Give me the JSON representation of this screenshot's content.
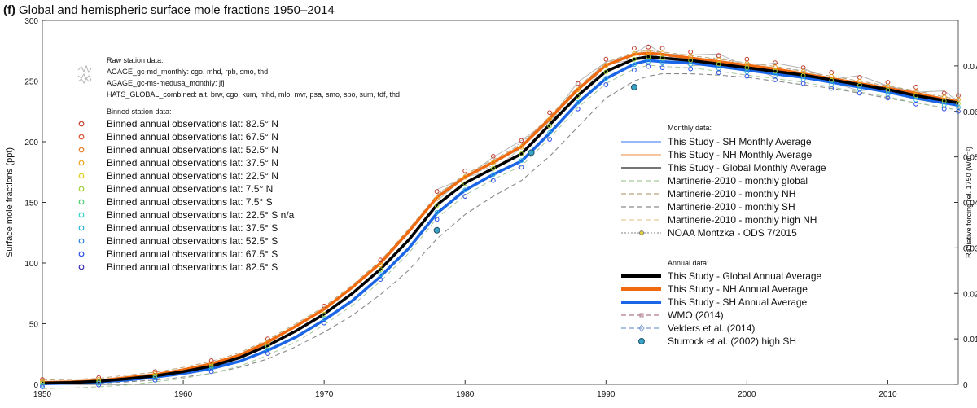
{
  "figure": {
    "panel_tag": "(f)",
    "title": "Global and hemispheric surface mole fractions 1950–2014"
  },
  "colors": {
    "sh_monthly": "#5b8ff2",
    "nh_monthly": "#f4a060",
    "global_monthly": "#222222",
    "global_annual": "#000000",
    "nh_annual": "#f06a10",
    "sh_annual": "#1a66e6",
    "martinerie": "#8a8a8a",
    "raw_station": "#b5b5b5"
  },
  "chart_data": {
    "type": "line",
    "title": "Global and hemispheric surface mole fractions 1950–2014",
    "xlabel": "",
    "ylabel": "Surface mole fractions (ppt)",
    "y2label": "Radiative forcing rel. 1750 (Wm⁻²)",
    "xlim": [
      1950,
      2015
    ],
    "ylim": [
      0,
      300
    ],
    "y2lim": [
      0,
      0.08
    ],
    "xticks": [
      1950,
      1960,
      1970,
      1980,
      1990,
      2000,
      2010
    ],
    "yticks": [
      0,
      50,
      100,
      150,
      200,
      250,
      300
    ],
    "y2ticks": [
      0,
      0.01,
      0.02,
      0.03,
      0.04,
      0.05,
      0.06,
      0.07
    ],
    "y2ticklabels": [
      "0",
      "0.01",
      "0.02",
      "0.03",
      "0.04",
      "0.05",
      "0.06",
      "0.07"
    ],
    "grid": false,
    "legend_position": "left and right, inside plot",
    "x": [
      1950,
      1952,
      1954,
      1956,
      1958,
      1960,
      1962,
      1964,
      1966,
      1968,
      1970,
      1972,
      1974,
      1976,
      1978,
      1980,
      1982,
      1984,
      1986,
      1988,
      1990,
      1992,
      1993,
      1994,
      1996,
      1998,
      2000,
      2002,
      2004,
      2006,
      2008,
      2010,
      2012,
      2014,
      2015
    ],
    "series": [
      {
        "name": "This Study - Global Annual Average",
        "key": "global",
        "values": [
          1,
          1.5,
          2.5,
          4.5,
          7,
          10.5,
          15,
          22,
          32,
          44,
          58,
          75,
          95,
          119,
          148,
          166,
          178,
          190,
          214,
          238,
          258,
          268,
          270,
          269,
          267,
          264,
          261,
          258,
          255,
          251,
          247,
          243,
          238,
          234,
          232
        ]
      },
      {
        "name": "This Study - NH Annual Average",
        "key": "nh",
        "values": [
          1.5,
          2,
          3,
          5.5,
          8,
          12,
          17,
          24,
          35,
          48,
          62,
          80,
          100,
          126,
          154,
          171,
          183,
          196,
          219,
          243,
          263,
          272,
          273,
          272,
          269,
          266,
          263,
          260,
          256,
          252,
          248,
          244,
          240,
          235,
          233
        ]
      },
      {
        "name": "This Study - SH Annual Average",
        "key": "sh",
        "values": [
          0.5,
          1,
          2,
          3.5,
          6,
          9,
          13,
          19,
          28,
          39,
          53,
          69,
          89,
          112,
          141,
          160,
          173,
          184,
          207,
          232,
          252,
          264,
          267,
          266,
          265,
          262,
          259,
          256,
          253,
          249,
          245,
          241,
          236,
          232,
          230
        ]
      },
      {
        "name": "Martinerie-2010 - monthly SH",
        "key": "martinerie",
        "values": [
          0.2,
          0.5,
          1,
          2,
          3.5,
          6,
          9,
          14,
          21,
          31,
          43,
          57,
          74,
          94,
          120,
          140,
          155,
          168,
          188,
          212,
          236,
          250,
          254,
          256,
          256,
          255,
          253,
          250,
          247,
          244,
          240,
          236,
          232,
          228,
          226
        ]
      }
    ],
    "sturrock_points": [
      {
        "x": 1978,
        "y": 127
      },
      {
        "x": 1984.7,
        "y": 191
      },
      {
        "x": 1992,
        "y": 245
      }
    ],
    "legend_left": {
      "raw_title": "Raw station data:",
      "raw_items": [
        "AGAGE_gc-md_monthly: cgo, mhd, rpb, smo, thd",
        "AGAGE_gc-ms-medusa_monthly: jfj",
        "HATS_GLOBAL_combined: alt, brw, cgo, kum, mhd, mlo, nwr, psa, smo, spo, sum, tdf, thd"
      ],
      "binned_title": "Binned station data:",
      "binned_items": [
        {
          "label": "Binned annual observations lat: 82.5° N",
          "color": "#c0392b"
        },
        {
          "label": "Binned annual observations lat: 67.5° N",
          "color": "#e04a2a"
        },
        {
          "label": "Binned annual observations lat: 52.5° N",
          "color": "#e8771e"
        },
        {
          "label": "Binned annual observations lat: 37.5° N",
          "color": "#efa41c"
        },
        {
          "label": "Binned annual observations lat: 22.5° N",
          "color": "#e2cf22"
        },
        {
          "label": "Binned annual observations lat: 7.5° N",
          "color": "#9fcf3a"
        },
        {
          "label": "Binned annual observations lat: 7.5° S",
          "color": "#4ccf6c"
        },
        {
          "label": "Binned annual observations lat: 22.5° S n/a",
          "color": "#2fd1c6"
        },
        {
          "label": "Binned annual observations lat: 37.5° S",
          "color": "#2ab2d6"
        },
        {
          "label": "Binned annual observations lat: 52.5° S",
          "color": "#2a7ee0"
        },
        {
          "label": "Binned annual observations lat: 67.5° S",
          "color": "#2b4ee6"
        },
        {
          "label": "Binned annual observations lat: 82.5° S",
          "color": "#3a2fb0"
        }
      ]
    },
    "legend_right": {
      "monthly_title": "Monthly data:",
      "monthly_items": [
        {
          "label": "This Study - SH Monthly Average",
          "color": "#5b8ff2",
          "dash": ""
        },
        {
          "label": "This Study - NH Monthly Average",
          "color": "#f4a060",
          "dash": ""
        },
        {
          "label": "This Study - Global Monthly Average",
          "color": "#222222",
          "dash": ""
        },
        {
          "label": "Martinerie-2010 - monthly global",
          "color": "#a8c89a",
          "dash": "6 4"
        },
        {
          "label": "Martinerie-2010 - monthly NH",
          "color": "#b9a47a",
          "dash": "6 4"
        },
        {
          "label": "Martinerie-2010 - monthly SH",
          "color": "#8a8a8a",
          "dash": "6 4"
        },
        {
          "label": "Martinerie-2010 - monthly high NH",
          "color": "#e8c99c",
          "dash": "6 4"
        },
        {
          "label": "NOAA Montzka - ODS 7/2015",
          "color": "#9a9a9a",
          "dash": "2 2"
        }
      ],
      "annual_title": "Annual data:",
      "annual_items": [
        {
          "label": "This Study - Global Annual Average",
          "color": "#000000",
          "width": 4
        },
        {
          "label": "This Study - NH Annual Average",
          "color": "#f06a10",
          "width": 4
        },
        {
          "label": "This Study - SH Annual Average",
          "color": "#1a66e6",
          "width": 4
        },
        {
          "label": "WMO (2014)",
          "color": "#b07a8a",
          "dash": "6 4"
        },
        {
          "label": "Velders et al. (2014)",
          "color": "#7a9ad0",
          "dash": "6 4"
        },
        {
          "label": "Sturrock et al. (2002) high SH",
          "color": "#2a90b0"
        }
      ]
    }
  }
}
